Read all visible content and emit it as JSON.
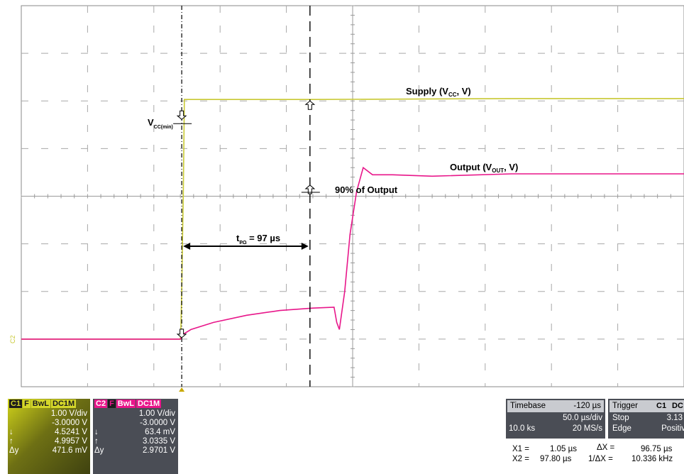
{
  "chart_data": {
    "type": "line",
    "xlabel": "",
    "ylabel": "",
    "grid": true,
    "x_units": "µs",
    "xlim": [
      -120,
      380
    ],
    "y_units": "div",
    "ylim": [
      -4,
      4
    ],
    "series": [
      {
        "name": "Supply (VCC, V)",
        "color": "#c8c832",
        "x": [
          -120,
          0,
          0.5,
          1.05,
          1.6,
          2.2,
          3.0,
          10,
          100,
          250,
          380
        ],
        "y": [
          -3.0,
          -3.0,
          -2.7,
          -2.0,
          -1.0,
          0.0,
          2.03,
          2.03,
          2.03,
          2.05,
          2.05
        ]
      },
      {
        "name": "Output (VOUT, V)",
        "color": "#e8168a",
        "x": [
          -120,
          0,
          2,
          8,
          25,
          50,
          75,
          100,
          116,
          118,
          120,
          124,
          128,
          133,
          138,
          145,
          160,
          190,
          250,
          300,
          380
        ],
        "y": [
          -3.0,
          -3.0,
          -2.9,
          -2.8,
          -2.65,
          -2.5,
          -2.4,
          -2.35,
          -2.33,
          -2.65,
          -2.8,
          -2.0,
          -0.8,
          0.1,
          0.6,
          0.45,
          0.45,
          0.42,
          0.47,
          0.47,
          0.47
        ]
      }
    ],
    "annotations": {
      "supply_label": "Supply (V",
      "supply_sub": "CC",
      "supply_tail": ", V)",
      "output_label": "Output (V",
      "output_sub": "OUT",
      "output_tail": ", V)",
      "vcc_label": "V",
      "vcc_sub": "CC(min)",
      "pct_label": "90% of Output",
      "tpo_label": "t",
      "tpo_sub": "PO",
      "tpo_value": " = 97 µs"
    },
    "channel_marker": "C2",
    "cursors_us": [
      1.05,
      97.8
    ]
  },
  "c1": {
    "tags": [
      "C1",
      "F",
      "BwL",
      "DC1M"
    ],
    "vdiv": "1.00 V/div",
    "offset": "-3.0000 V",
    "cur1": "4.5241 V",
    "cur2": "4.9957 V",
    "delta": "471.6 mV",
    "delta_label": "Δy"
  },
  "c2": {
    "tags": [
      "C2",
      "F",
      "BwL",
      "DC1M"
    ],
    "vdiv": "1.00 V/div",
    "offset": "-3.0000 V",
    "cur1": "63.4 mV",
    "cur2": "3.0335 V",
    "delta": "2.9701 V",
    "delta_label": "Δy"
  },
  "timebase": {
    "label": "Timebase",
    "pos": "-120 µs",
    "div": "50.0 µs/div",
    "samples": "10.0 ks",
    "rate": "20 MS/s"
  },
  "trigger": {
    "label": "Trigger",
    "tags": [
      "C1",
      "DC"
    ],
    "mode": "Stop",
    "level": "3.13",
    "type": "Edge",
    "slope": "Positiv"
  },
  "cursor_readout": {
    "x1_label": "X1 =",
    "x1": "1.05 µs",
    "x2_label": "X2 =",
    "x2": "97.80 µs",
    "dx_label": "ΔX =",
    "dx": "96.75 µs",
    "inv_label": "1/ΔX =",
    "inv": "10.336 kHz"
  },
  "colors": {
    "c1": "#c8c832",
    "c2": "#e8168a",
    "c1_tag": "#d4d62a",
    "c2_tag": "#e8168a",
    "panel_bg": "#4a4d55"
  }
}
